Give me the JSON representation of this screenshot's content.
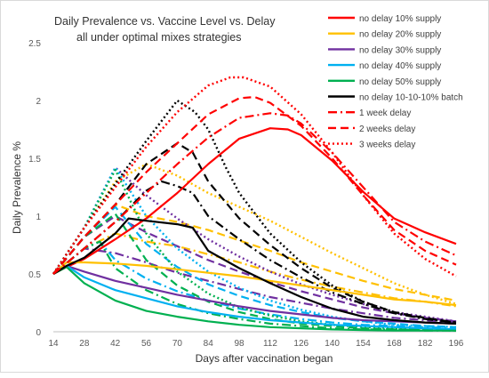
{
  "chart_data": {
    "type": "line",
    "title": "Daily Prevalence vs. Vaccine Level vs. Delay",
    "subtitle": "all under optimal mixes strategies",
    "xlabel": "Days after vaccination began",
    "ylabel": "Daily  Prevalence %",
    "xlim": [
      14,
      196
    ],
    "ylim": [
      0,
      2.5
    ],
    "x_ticks": [
      14,
      28,
      42,
      56,
      70,
      84,
      98,
      112,
      126,
      140,
      154,
      168,
      182,
      196
    ],
    "y_ticks": [
      0,
      0.5,
      1,
      1.5,
      2,
      2.5
    ],
    "y_tick_labels": [
      "0",
      "0.5",
      "1",
      "1.5",
      "2",
      "2.5"
    ],
    "grid": false,
    "legend_position": "top-right",
    "series": [
      {
        "name": "no delay 10% supply",
        "color": "#ff0000",
        "style": "solid",
        "x": [
          14,
          20,
          28,
          42,
          56,
          70,
          84,
          98,
          112,
          120,
          126,
          140,
          154,
          168,
          182,
          196
        ],
        "y": [
          0.5,
          0.56,
          0.63,
          0.8,
          0.98,
          1.2,
          1.45,
          1.67,
          1.76,
          1.75,
          1.7,
          1.48,
          1.21,
          0.98,
          0.86,
          0.76
        ]
      },
      {
        "name": "no delay 20% supply",
        "color": "#ffc000",
        "style": "solid",
        "x": [
          14,
          20,
          28,
          42,
          56,
          70,
          84,
          98,
          112,
          126,
          140,
          154,
          168,
          182,
          196
        ],
        "y": [
          0.5,
          0.6,
          0.6,
          0.59,
          0.57,
          0.54,
          0.51,
          0.48,
          0.44,
          0.4,
          0.36,
          0.32,
          0.28,
          0.26,
          0.23
        ]
      },
      {
        "name": "no delay 30% supply",
        "color": "#7030a0",
        "style": "solid",
        "x": [
          14,
          20,
          28,
          42,
          56,
          70,
          84,
          98,
          112,
          126,
          140,
          154,
          168,
          182,
          196
        ],
        "y": [
          0.5,
          0.57,
          0.52,
          0.44,
          0.38,
          0.32,
          0.27,
          0.22,
          0.18,
          0.15,
          0.12,
          0.1,
          0.09,
          0.08,
          0.07
        ]
      },
      {
        "name": "no delay 40% supply",
        "color": "#00b0f0",
        "style": "solid",
        "x": [
          14,
          20,
          28,
          42,
          56,
          70,
          84,
          98,
          112,
          126,
          140,
          154,
          168,
          182,
          196
        ],
        "y": [
          0.5,
          0.57,
          0.47,
          0.36,
          0.29,
          0.22,
          0.17,
          0.13,
          0.1,
          0.08,
          0.06,
          0.05,
          0.04,
          0.03,
          0.02
        ]
      },
      {
        "name": "no delay 50% supply",
        "color": "#00b050",
        "style": "solid",
        "x": [
          14,
          20,
          28,
          42,
          56,
          70,
          84,
          98,
          112,
          126,
          140,
          154,
          168,
          182,
          196
        ],
        "y": [
          0.5,
          0.56,
          0.42,
          0.27,
          0.18,
          0.13,
          0.09,
          0.06,
          0.04,
          0.03,
          0.02,
          0.015,
          0.01,
          0.01,
          0.01
        ]
      },
      {
        "name": "no delay 10-10-10% batch",
        "color": "#000000",
        "style": "solid",
        "x": [
          14,
          20,
          28,
          42,
          48,
          56,
          70,
          77,
          84,
          98,
          112,
          126,
          140,
          154,
          168,
          182,
          196
        ],
        "y": [
          0.5,
          0.57,
          0.64,
          0.85,
          0.98,
          0.96,
          0.93,
          0.9,
          0.7,
          0.55,
          0.42,
          0.3,
          0.2,
          0.13,
          0.1,
          0.08,
          0.07
        ]
      },
      {
        "name": "1 week delay",
        "color": "#ff0000",
        "style": "dashdot",
        "x": [
          14,
          28,
          42,
          56,
          70,
          84,
          98,
          112,
          120,
          126,
          140,
          154,
          168,
          182,
          196
        ],
        "y": [
          0.5,
          0.72,
          0.95,
          1.2,
          1.45,
          1.68,
          1.85,
          1.89,
          1.87,
          1.8,
          1.55,
          1.25,
          0.95,
          0.78,
          0.66
        ]
      },
      {
        "name": "2 weeks delay",
        "color": "#ff0000",
        "style": "dashed",
        "x": [
          14,
          28,
          42,
          56,
          70,
          84,
          98,
          105,
          112,
          126,
          140,
          154,
          168,
          182,
          196
        ],
        "y": [
          0.5,
          0.82,
          1.1,
          1.38,
          1.63,
          1.88,
          2.02,
          2.03,
          1.98,
          1.78,
          1.5,
          1.18,
          0.88,
          0.7,
          0.58
        ]
      },
      {
        "name": "3 weeks delay",
        "color": "#ff0000",
        "style": "dotted",
        "x": [
          14,
          28,
          42,
          56,
          70,
          84,
          94,
          100,
          112,
          126,
          140,
          154,
          168,
          182,
          196
        ],
        "y": [
          0.5,
          0.9,
          1.25,
          1.6,
          1.9,
          2.13,
          2.2,
          2.2,
          2.12,
          1.88,
          1.55,
          1.18,
          0.85,
          0.63,
          0.48
        ]
      }
    ],
    "unlabeled_series": [
      {
        "color": "#ffc000",
        "style": "dashdot",
        "x": [
          14,
          28,
          42,
          56,
          70,
          84,
          98,
          112,
          126,
          140,
          154,
          168,
          182,
          196
        ],
        "y": [
          0.5,
          0.72,
          0.85,
          0.78,
          0.74,
          0.67,
          0.6,
          0.52,
          0.45,
          0.39,
          0.34,
          0.29,
          0.26,
          0.22
        ]
      },
      {
        "color": "#ffc000",
        "style": "dashed",
        "x": [
          14,
          28,
          42,
          56,
          70,
          84,
          98,
          112,
          126,
          140,
          154,
          168,
          182,
          196
        ],
        "y": [
          0.5,
          0.82,
          1.1,
          1.0,
          0.95,
          0.88,
          0.79,
          0.7,
          0.6,
          0.52,
          0.44,
          0.37,
          0.32,
          0.27
        ]
      },
      {
        "color": "#ffc000",
        "style": "dotted",
        "x": [
          14,
          28,
          42,
          56,
          70,
          84,
          98,
          112,
          126,
          140,
          154,
          168,
          182,
          196
        ],
        "y": [
          0.5,
          0.9,
          1.3,
          1.45,
          1.35,
          1.2,
          1.08,
          0.96,
          0.82,
          0.68,
          0.55,
          0.42,
          0.32,
          0.24
        ]
      },
      {
        "color": "#7030a0",
        "style": "dashdot",
        "x": [
          14,
          28,
          42,
          56,
          70,
          84,
          98,
          112,
          126,
          140,
          154,
          168,
          182,
          196
        ],
        "y": [
          0.5,
          0.72,
          0.68,
          0.6,
          0.51,
          0.44,
          0.37,
          0.3,
          0.25,
          0.2,
          0.16,
          0.12,
          0.1,
          0.08
        ]
      },
      {
        "color": "#7030a0",
        "style": "dashed",
        "x": [
          14,
          28,
          42,
          56,
          70,
          84,
          98,
          112,
          126,
          140,
          154,
          168,
          182,
          196
        ],
        "y": [
          0.5,
          0.82,
          1.0,
          0.86,
          0.74,
          0.62,
          0.52,
          0.43,
          0.35,
          0.28,
          0.21,
          0.16,
          0.12,
          0.09
        ]
      },
      {
        "color": "#7030a0",
        "style": "dotted",
        "x": [
          14,
          28,
          42,
          56,
          70,
          84,
          98,
          112,
          126,
          140,
          154,
          168,
          182,
          196
        ],
        "y": [
          0.5,
          0.9,
          1.42,
          1.18,
          0.98,
          0.8,
          0.65,
          0.52,
          0.41,
          0.32,
          0.24,
          0.17,
          0.13,
          0.09
        ]
      },
      {
        "color": "#00b0f0",
        "style": "dashdot",
        "x": [
          14,
          28,
          35,
          42,
          56,
          70,
          84,
          98,
          112,
          126,
          140,
          154,
          168,
          182,
          196
        ],
        "y": [
          0.5,
          0.72,
          0.78,
          0.62,
          0.46,
          0.35,
          0.27,
          0.2,
          0.15,
          0.11,
          0.08,
          0.06,
          0.05,
          0.04,
          0.03
        ]
      },
      {
        "color": "#00b0f0",
        "style": "dashed",
        "x": [
          14,
          28,
          42,
          56,
          70,
          84,
          98,
          112,
          126,
          140,
          154,
          168,
          182,
          196
        ],
        "y": [
          0.5,
          0.82,
          1.08,
          0.76,
          0.56,
          0.41,
          0.31,
          0.23,
          0.17,
          0.12,
          0.09,
          0.07,
          0.05,
          0.04
        ]
      },
      {
        "color": "#00b0f0",
        "style": "dotted",
        "x": [
          14,
          28,
          42,
          56,
          70,
          84,
          98,
          112,
          126,
          140,
          154,
          168,
          182,
          196
        ],
        "y": [
          0.5,
          0.9,
          1.42,
          1.0,
          0.72,
          0.52,
          0.38,
          0.27,
          0.19,
          0.13,
          0.09,
          0.06,
          0.05,
          0.04
        ]
      },
      {
        "color": "#00b050",
        "style": "dashdot",
        "x": [
          14,
          28,
          35,
          42,
          56,
          70,
          84,
          98,
          112,
          126,
          140,
          154,
          168,
          182,
          196
        ],
        "y": [
          0.5,
          0.72,
          0.78,
          0.55,
          0.36,
          0.24,
          0.16,
          0.11,
          0.07,
          0.05,
          0.03,
          0.02,
          0.02,
          0.01,
          0.01
        ]
      },
      {
        "color": "#00b050",
        "style": "dashed",
        "x": [
          14,
          28,
          42,
          56,
          70,
          84,
          98,
          112,
          126,
          140,
          154,
          168,
          182,
          196
        ],
        "y": [
          0.5,
          0.82,
          1.02,
          0.62,
          0.4,
          0.26,
          0.17,
          0.11,
          0.07,
          0.05,
          0.03,
          0.02,
          0.02,
          0.01
        ]
      },
      {
        "color": "#00b050",
        "style": "dotted",
        "x": [
          14,
          28,
          42,
          56,
          70,
          84,
          98,
          112,
          126,
          140,
          154,
          168,
          182,
          196
        ],
        "y": [
          0.5,
          0.9,
          1.4,
          0.85,
          0.52,
          0.33,
          0.21,
          0.14,
          0.09,
          0.06,
          0.04,
          0.03,
          0.02,
          0.01
        ]
      },
      {
        "color": "#000000",
        "style": "dashdot",
        "x": [
          14,
          28,
          42,
          56,
          63,
          70,
          77,
          84,
          98,
          112,
          126,
          140,
          154,
          168,
          182,
          196
        ],
        "y": [
          0.5,
          0.72,
          0.95,
          1.22,
          1.3,
          1.26,
          1.2,
          1.0,
          0.8,
          0.62,
          0.47,
          0.34,
          0.24,
          0.16,
          0.11,
          0.08
        ]
      },
      {
        "color": "#000000",
        "style": "dashed",
        "x": [
          14,
          28,
          42,
          56,
          70,
          77,
          84,
          98,
          112,
          126,
          140,
          154,
          168,
          182,
          196
        ],
        "y": [
          0.5,
          0.82,
          1.1,
          1.45,
          1.63,
          1.55,
          1.3,
          0.98,
          0.75,
          0.55,
          0.38,
          0.26,
          0.17,
          0.12,
          0.08
        ]
      },
      {
        "color": "#000000",
        "style": "dotted",
        "x": [
          14,
          28,
          42,
          56,
          70,
          78,
          84,
          92,
          98,
          112,
          126,
          140,
          154,
          168,
          182,
          196
        ],
        "y": [
          0.5,
          0.9,
          1.28,
          1.65,
          2.0,
          1.9,
          1.75,
          1.42,
          1.2,
          0.85,
          0.6,
          0.4,
          0.26,
          0.17,
          0.11,
          0.08
        ]
      }
    ]
  }
}
